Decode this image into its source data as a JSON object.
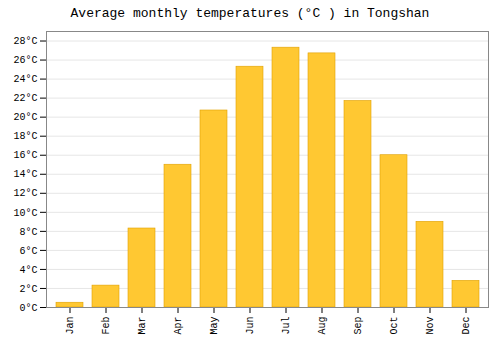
{
  "chart_data": {
    "type": "bar",
    "title": "Average monthly temperatures (°C ) in Tongshan",
    "categories": [
      "Jan",
      "Feb",
      "Mar",
      "Apr",
      "May",
      "Jun",
      "Jul",
      "Aug",
      "Sep",
      "Oct",
      "Nov",
      "Dec"
    ],
    "values": [
      0.5,
      2.3,
      8.3,
      15.0,
      20.7,
      25.3,
      27.3,
      26.7,
      21.7,
      16.0,
      9.0,
      2.8
    ],
    "color": "#FFC832",
    "ylim": [
      0,
      29
    ],
    "yticks": [
      {
        "value": 0,
        "label": "0°C"
      },
      {
        "value": 2,
        "label": "2°C"
      },
      {
        "value": 4,
        "label": "4°C"
      },
      {
        "value": 6,
        "label": "6°C"
      },
      {
        "value": 8,
        "label": "8°C"
      },
      {
        "value": 10,
        "label": "10°C"
      },
      {
        "value": 12,
        "label": "12°C"
      },
      {
        "value": 14,
        "label": "14°C"
      },
      {
        "value": 16,
        "label": "16°C"
      },
      {
        "value": 18,
        "label": "18°C"
      },
      {
        "value": 20,
        "label": "20°C"
      },
      {
        "value": 22,
        "label": "22°C"
      },
      {
        "value": 24,
        "label": "24°C"
      },
      {
        "value": 26,
        "label": "26°C"
      },
      {
        "value": 28,
        "label": "28°C"
      }
    ],
    "grid": true
  }
}
